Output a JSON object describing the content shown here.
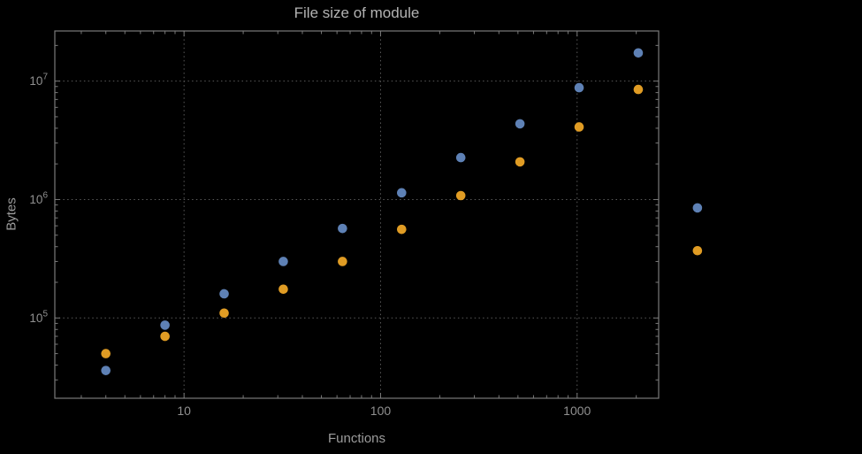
{
  "chart_data": {
    "type": "scatter",
    "title": "File size of module",
    "xlabel": "Functions",
    "ylabel": "Bytes",
    "x_scale": "log",
    "y_scale": "log",
    "xlim": [
      2.2,
      2600
    ],
    "ylim": [
      21000,
      26500000
    ],
    "grid": true,
    "legend": "none",
    "x": [
      4,
      8,
      16,
      32,
      64,
      128,
      256,
      512,
      1024,
      2048,
      4096
    ],
    "series": [
      {
        "name": "blue",
        "color": "#5e81b5",
        "values": [
          36000,
          87000,
          160000,
          300000,
          570000,
          1140000,
          2260000,
          4360000,
          8800000,
          17300000,
          850000
        ]
      },
      {
        "name": "orange",
        "color": "#e09c24",
        "values": [
          50000,
          70000,
          110000,
          175000,
          300000,
          560000,
          1080000,
          2080000,
          4100000,
          8500000,
          370000
        ]
      }
    ],
    "x_ticks": [
      {
        "value": 10,
        "label": "10"
      },
      {
        "value": 100,
        "label": "100"
      },
      {
        "value": 1000,
        "label": "1000"
      }
    ],
    "y_ticks": [
      {
        "value": 100000,
        "base": "10",
        "exp": "5"
      },
      {
        "value": 1000000,
        "base": "10",
        "exp": "6"
      },
      {
        "value": 10000000,
        "base": "10",
        "exp": "7"
      }
    ],
    "colors": {
      "background": "#000000",
      "frame": "#7a7a7a",
      "grid": "#5a5a5a",
      "tick_text": "#909090",
      "title_text": "#b3b3b3",
      "axis_label_text": "#9c9c9c"
    }
  }
}
